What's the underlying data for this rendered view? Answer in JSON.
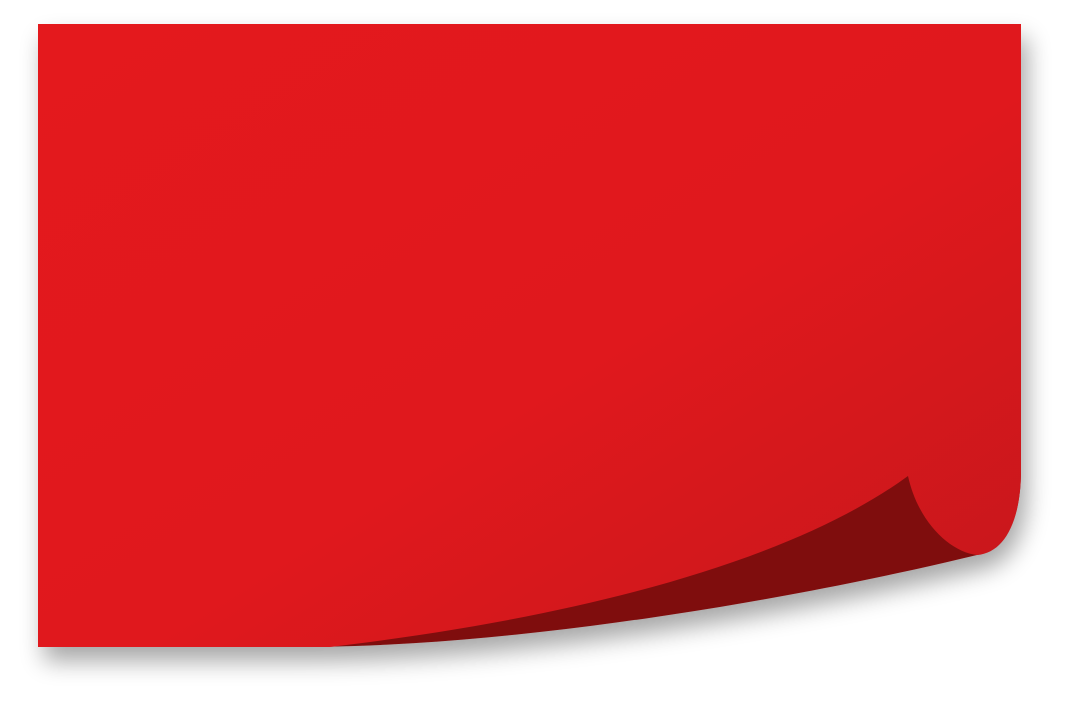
{
  "graphic": {
    "icon": "sticky-note-curled-corner",
    "colors": {
      "paper_light": "#e4191d",
      "paper_dark": "#c5171b",
      "fold_shadow": "#7f1010",
      "background": "#ffffff"
    }
  }
}
